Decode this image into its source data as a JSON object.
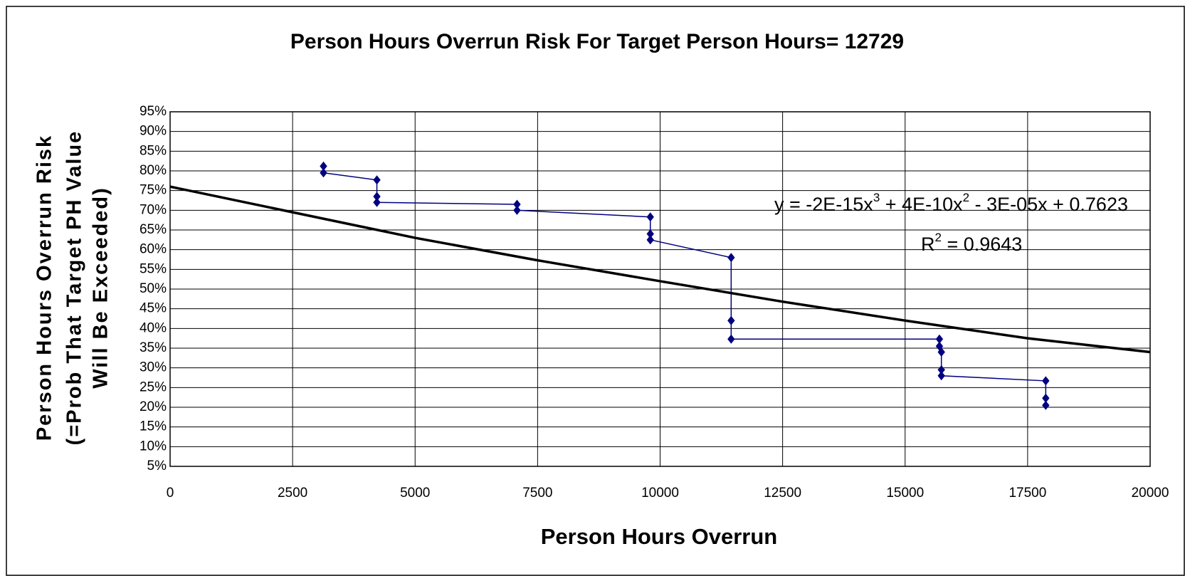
{
  "chart_data": {
    "type": "scatter",
    "title": "Person Hours Overrun Risk For Target Person Hours= 12729",
    "xlabel": "Person Hours Overrun",
    "ylabel": [
      "Person Hours Overrun Risk",
      "(=Prob That Target PH Value",
      "Will Be Exceeded)"
    ],
    "xlim": [
      0,
      20000
    ],
    "xticks": [
      0,
      2500,
      5000,
      7500,
      10000,
      12500,
      15000,
      17500,
      20000
    ],
    "ylim": [
      5,
      95
    ],
    "yticks": [
      {
        "value": 5,
        "label": "5%"
      },
      {
        "value": 10,
        "label": "10%"
      },
      {
        "value": 15,
        "label": "15%"
      },
      {
        "value": 20,
        "label": "20%"
      },
      {
        "value": 25,
        "label": "25%"
      },
      {
        "value": 30,
        "label": "30%"
      },
      {
        "value": 35,
        "label": "35%"
      },
      {
        "value": 40,
        "label": "40%"
      },
      {
        "value": 45,
        "label": "45%"
      },
      {
        "value": 50,
        "label": "50%"
      },
      {
        "value": 55,
        "label": "55%"
      },
      {
        "value": 60,
        "label": "60%"
      },
      {
        "value": 65,
        "label": "65%"
      },
      {
        "value": 70,
        "label": "70%"
      },
      {
        "value": 75,
        "label": "75%"
      },
      {
        "value": 80,
        "label": "80%"
      },
      {
        "value": 85,
        "label": "85%"
      },
      {
        "value": 90,
        "label": "90%"
      },
      {
        "value": 95,
        "label": "95%"
      }
    ],
    "grid": true,
    "series": [
      {
        "color": "#000080",
        "markers": true,
        "line_width": 1.5,
        "x": [
          3130,
          3130,
          4220,
          4220,
          4220,
          7080,
          7080,
          9800,
          9800,
          9800,
          11450,
          11450,
          11450,
          15700,
          15700,
          15740,
          15740,
          15740,
          17870,
          17870,
          17870
        ],
        "values": [
          81.2,
          79.5,
          77.7,
          73.5,
          72,
          71.5,
          70,
          68.3,
          64,
          62.5,
          58,
          42,
          37.3,
          37.3,
          35.5,
          34,
          29.5,
          28,
          26.7,
          22.3,
          20.5
        ]
      },
      {
        "color": "#000000",
        "markers": false,
        "line_width": 3.5,
        "x": [
          0,
          2500,
          5000,
          7500,
          10000,
          12500,
          15000,
          17500,
          20000
        ],
        "values": [
          76,
          69.5,
          63,
          57.3,
          52,
          46.8,
          42,
          37.5,
          34
        ]
      }
    ],
    "annotations": {
      "equation": [
        "y = -2E-15x",
        "3",
        " + 4E-10x",
        "2",
        " - 3E-05x + 0.7623"
      ],
      "r2": [
        "R",
        "2",
        " = 0.9643"
      ]
    }
  }
}
